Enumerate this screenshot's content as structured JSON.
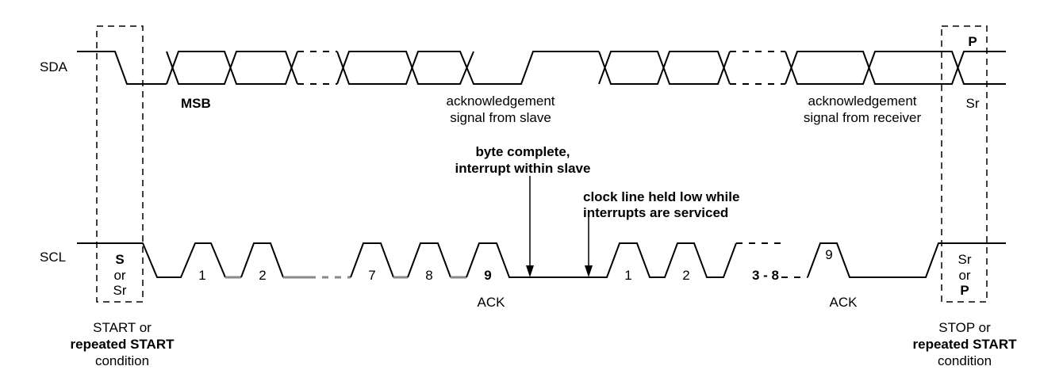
{
  "signals": {
    "sda": "SDA",
    "scl": "SCL"
  },
  "sda_labels": {
    "msb": "MSB",
    "p": "P",
    "sr": "Sr"
  },
  "ack_slave": [
    "acknowledgement",
    "signal from slave"
  ],
  "ack_receiver": [
    "acknowledgement",
    "signal from receiver"
  ],
  "byte_complete": [
    "byte complete,",
    "interrupt within slave"
  ],
  "clock_held": [
    "clock line held low while",
    "interrupts are serviced"
  ],
  "start_box": [
    "S",
    "or",
    "Sr"
  ],
  "stop_box": [
    "Sr",
    "or",
    "P"
  ],
  "pulses_first": [
    "1",
    "2",
    "7",
    "8",
    "9"
  ],
  "pulses_second": [
    "1",
    "2",
    "3 - 8",
    "9"
  ],
  "ack_label": "ACK",
  "start_condition": [
    "START or",
    "repeated START",
    "condition"
  ],
  "stop_condition": [
    "STOP or",
    "repeated START",
    "condition"
  ]
}
